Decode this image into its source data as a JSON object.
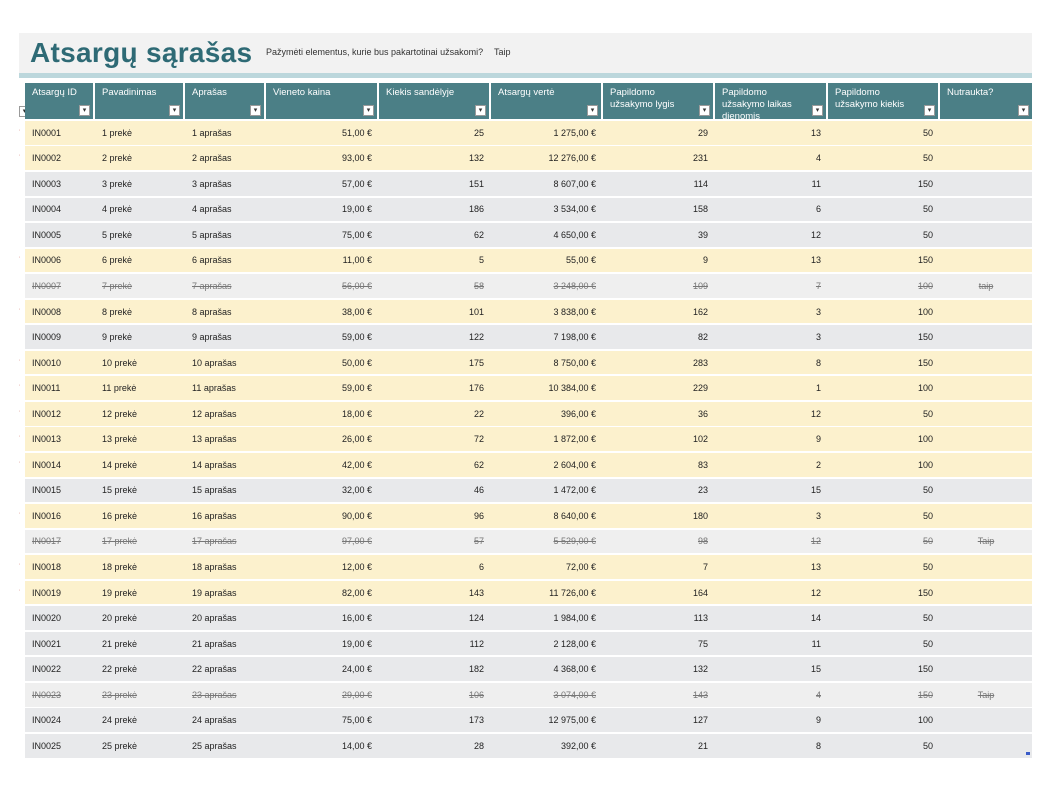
{
  "title": "Atsargų sąrašas",
  "flag_prompt": "Pažymėti elementus, kurie bus pakartotinai užsakomi?",
  "flag_value": "Taip",
  "colors": {
    "header_bg": "#4b7f86",
    "title": "#2e6a75",
    "row_flag": "#fcf1cd",
    "row_normal": "#e8e9eb",
    "row_discontinued": "#efefef",
    "flag": "#c0392b"
  },
  "filter_icon": "filter-dropdown-icon",
  "headers": [
    "Atsargų ID",
    "Pavadinimas",
    "Aprašas",
    "Vieneto kaina",
    "Kiekis sandėlyje",
    "Atsargų vertė",
    "Papildomo užsakymo lygis",
    "Papildomo užsakymo laikas dienomis",
    "Papildomo užsakymo kiekis",
    "Nutraukta?"
  ],
  "rows": [
    {
      "status": "flag",
      "cells": [
        "IN0001",
        "1 prekė",
        "1 aprašas",
        "51,00 €",
        "25",
        "1 275,00 €",
        "29",
        "13",
        "50",
        ""
      ]
    },
    {
      "status": "flag",
      "cells": [
        "IN0002",
        "2 prekė",
        "2 aprašas",
        "93,00 €",
        "132",
        "12 276,00 €",
        "231",
        "4",
        "50",
        ""
      ]
    },
    {
      "status": "normal",
      "cells": [
        "IN0003",
        "3 prekė",
        "3 aprašas",
        "57,00 €",
        "151",
        "8 607,00 €",
        "114",
        "11",
        "150",
        ""
      ]
    },
    {
      "status": "normal",
      "cells": [
        "IN0004",
        "4 prekė",
        "4 aprašas",
        "19,00 €",
        "186",
        "3 534,00 €",
        "158",
        "6",
        "50",
        ""
      ]
    },
    {
      "status": "normal",
      "cells": [
        "IN0005",
        "5 prekė",
        "5 aprašas",
        "75,00 €",
        "62",
        "4 650,00 €",
        "39",
        "12",
        "50",
        ""
      ]
    },
    {
      "status": "flag",
      "cells": [
        "IN0006",
        "6 prekė",
        "6 aprašas",
        "11,00 €",
        "5",
        "55,00 €",
        "9",
        "13",
        "150",
        ""
      ]
    },
    {
      "status": "discontinued",
      "cells": [
        "IN0007",
        "7 prekė",
        "7 aprašas",
        "56,00 €",
        "58",
        "3 248,00 €",
        "109",
        "7",
        "100",
        "taip"
      ]
    },
    {
      "status": "flag",
      "cells": [
        "IN0008",
        "8 prekė",
        "8 aprašas",
        "38,00 €",
        "101",
        "3 838,00 €",
        "162",
        "3",
        "100",
        ""
      ]
    },
    {
      "status": "normal",
      "cells": [
        "IN0009",
        "9 prekė",
        "9 aprašas",
        "59,00 €",
        "122",
        "7 198,00 €",
        "82",
        "3",
        "150",
        ""
      ]
    },
    {
      "status": "flag",
      "cells": [
        "IN0010",
        "10 prekė",
        "10 aprašas",
        "50,00 €",
        "175",
        "8 750,00 €",
        "283",
        "8",
        "150",
        ""
      ]
    },
    {
      "status": "flag",
      "cells": [
        "IN0011",
        "11 prekė",
        "11 aprašas",
        "59,00 €",
        "176",
        "10 384,00 €",
        "229",
        "1",
        "100",
        ""
      ]
    },
    {
      "status": "flag",
      "cells": [
        "IN0012",
        "12 prekė",
        "12 aprašas",
        "18,00 €",
        "22",
        "396,00 €",
        "36",
        "12",
        "50",
        ""
      ]
    },
    {
      "status": "flag",
      "cells": [
        "IN0013",
        "13 prekė",
        "13 aprašas",
        "26,00 €",
        "72",
        "1 872,00 €",
        "102",
        "9",
        "100",
        ""
      ]
    },
    {
      "status": "flag",
      "cells": [
        "IN0014",
        "14 prekė",
        "14 aprašas",
        "42,00 €",
        "62",
        "2 604,00 €",
        "83",
        "2",
        "100",
        ""
      ]
    },
    {
      "status": "normal",
      "cells": [
        "IN0015",
        "15 prekė",
        "15 aprašas",
        "32,00 €",
        "46",
        "1 472,00 €",
        "23",
        "15",
        "50",
        ""
      ]
    },
    {
      "status": "flag",
      "cells": [
        "IN0016",
        "16 prekė",
        "16 aprašas",
        "90,00 €",
        "96",
        "8 640,00 €",
        "180",
        "3",
        "50",
        ""
      ]
    },
    {
      "status": "discontinued",
      "cells": [
        "IN0017",
        "17 prekė",
        "17 aprašas",
        "97,00 €",
        "57",
        "5 529,00 €",
        "98",
        "12",
        "50",
        "Taip"
      ]
    },
    {
      "status": "flag",
      "cells": [
        "IN0018",
        "18 prekė",
        "18 aprašas",
        "12,00 €",
        "6",
        "72,00 €",
        "7",
        "13",
        "50",
        ""
      ]
    },
    {
      "status": "flag",
      "cells": [
        "IN0019",
        "19 prekė",
        "19 aprašas",
        "82,00 €",
        "143",
        "11 726,00 €",
        "164",
        "12",
        "150",
        ""
      ]
    },
    {
      "status": "normal",
      "cells": [
        "IN0020",
        "20 prekė",
        "20 aprašas",
        "16,00 €",
        "124",
        "1 984,00 €",
        "113",
        "14",
        "50",
        ""
      ]
    },
    {
      "status": "normal",
      "cells": [
        "IN0021",
        "21 prekė",
        "21 aprašas",
        "19,00 €",
        "112",
        "2 128,00 €",
        "75",
        "11",
        "50",
        ""
      ]
    },
    {
      "status": "normal",
      "cells": [
        "IN0022",
        "22 prekė",
        "22 aprašas",
        "24,00 €",
        "182",
        "4 368,00 €",
        "132",
        "15",
        "150",
        ""
      ]
    },
    {
      "status": "discontinued",
      "cells": [
        "IN0023",
        "23 prekė",
        "23 aprašas",
        "29,00 €",
        "106",
        "3 074,00 €",
        "143",
        "4",
        "150",
        "Taip"
      ]
    },
    {
      "status": "normal",
      "cells": [
        "IN0024",
        "24 prekė",
        "24 aprašas",
        "75,00 €",
        "173",
        "12 975,00 €",
        "127",
        "9",
        "100",
        ""
      ]
    },
    {
      "status": "normal",
      "cells": [
        "IN0025",
        "25 prekė",
        "25 aprašas",
        "14,00 €",
        "28",
        "392,00 €",
        "21",
        "8",
        "50",
        ""
      ]
    }
  ]
}
